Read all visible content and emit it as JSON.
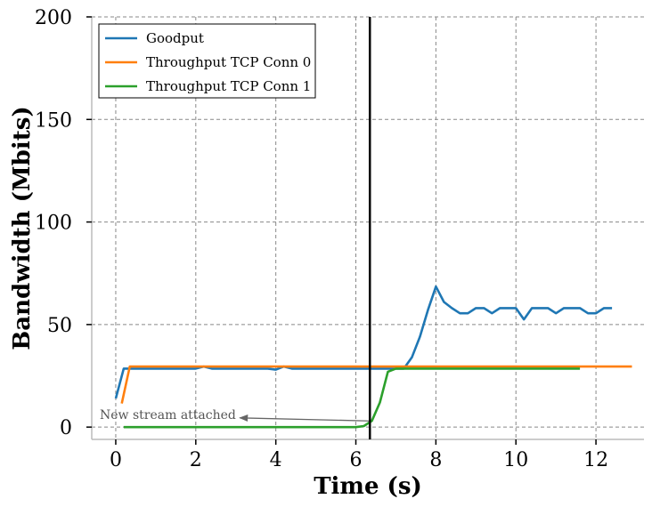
{
  "chart_data": {
    "type": "line",
    "title": "",
    "xlabel": "Time (s)",
    "ylabel": "Bandwidth (Mbits)",
    "xlim": [
      -0.6,
      13.2
    ],
    "ylim": [
      -6,
      200
    ],
    "xticks": [
      0,
      2,
      4,
      6,
      8,
      10,
      12
    ],
    "yticks": [
      0,
      50,
      100,
      150,
      200
    ],
    "grid": true,
    "legend_position": "top-left",
    "vline_x": 6.35,
    "annotation": {
      "text": "New stream attached",
      "text_x": -0.4,
      "text_y": 4,
      "arrow_from": [
        6.32,
        3
      ],
      "arrow_to": [
        3.1,
        4.5
      ]
    },
    "series": [
      {
        "name": "Goodput",
        "color": "#1f77b4",
        "x": [
          0,
          0.2,
          0.4,
          0.6,
          0.8,
          1.0,
          1.2,
          1.4,
          1.6,
          1.8,
          2.0,
          2.2,
          2.4,
          2.6,
          2.8,
          3.0,
          3.2,
          3.4,
          3.6,
          3.8,
          4.0,
          4.2,
          4.4,
          4.6,
          4.8,
          5.0,
          5.2,
          5.4,
          5.6,
          5.8,
          6.0,
          6.2,
          6.4,
          6.6,
          6.8,
          7.0,
          7.2,
          7.4,
          7.6,
          7.8,
          8.0,
          8.2,
          8.4,
          8.6,
          8.8,
          9.0,
          9.2,
          9.4,
          9.6,
          9.8,
          10.0,
          10.2,
          10.4,
          10.6,
          10.8,
          11.0,
          11.2,
          11.4,
          11.6,
          11.8,
          12.0,
          12.2,
          12.4
        ],
        "y": [
          14,
          28.5,
          28.5,
          28.5,
          28.5,
          28.5,
          28.5,
          28.5,
          28.5,
          28.5,
          28.5,
          29.5,
          28.5,
          28.5,
          28.5,
          28.5,
          28.5,
          28.5,
          28.5,
          28.5,
          28,
          29.5,
          28.5,
          28.5,
          28.5,
          28.5,
          28.5,
          28.5,
          28.5,
          28.5,
          28.5,
          28.5,
          28.5,
          28.5,
          28.5,
          28.5,
          28.5,
          34,
          44,
          57,
          68.5,
          61,
          58,
          55.5,
          55.5,
          58,
          58,
          55.5,
          58,
          58,
          58,
          52.5,
          58,
          58,
          58,
          55.5,
          58,
          58,
          58,
          55.5,
          55.5,
          58,
          58
        ]
      },
      {
        "name": "Throughput TCP Conn 0",
        "color": "#ff7f0e",
        "x": [
          0.15,
          0.35,
          0.6,
          1.0,
          1.5,
          2.0,
          2.5,
          3.0,
          3.5,
          4.0,
          4.5,
          5.0,
          5.5,
          6.0,
          6.5,
          7.0,
          7.5,
          8.0,
          8.5,
          9.0,
          9.5,
          10.0,
          10.5,
          11.0,
          11.5,
          12.0,
          12.5,
          12.9
        ],
        "y": [
          11.5,
          29.5,
          29.5,
          29.5,
          29.5,
          29.5,
          29.5,
          29.5,
          29.5,
          29.5,
          29.5,
          29.5,
          29.5,
          29.5,
          29.5,
          29.5,
          29.5,
          29.5,
          29.5,
          29.5,
          29.5,
          29.5,
          29.5,
          29.5,
          29.5,
          29.5,
          29.5,
          29.5
        ]
      },
      {
        "name": "Throughput TCP Conn 1",
        "color": "#2ca02c",
        "x": [
          0.2,
          1.0,
          2.0,
          3.0,
          4.0,
          5.0,
          6.0,
          6.2,
          6.4,
          6.6,
          6.8,
          7.0,
          7.5,
          8.0,
          8.5,
          9.0,
          9.5,
          10.0,
          10.5,
          11.0,
          11.6
        ],
        "y": [
          0,
          0,
          0,
          0,
          0,
          0,
          0,
          0.5,
          3,
          12,
          27,
          28.5,
          28.5,
          28.5,
          28.5,
          28.5,
          28.5,
          28.5,
          28.5,
          28.5,
          28.5
        ]
      }
    ]
  }
}
